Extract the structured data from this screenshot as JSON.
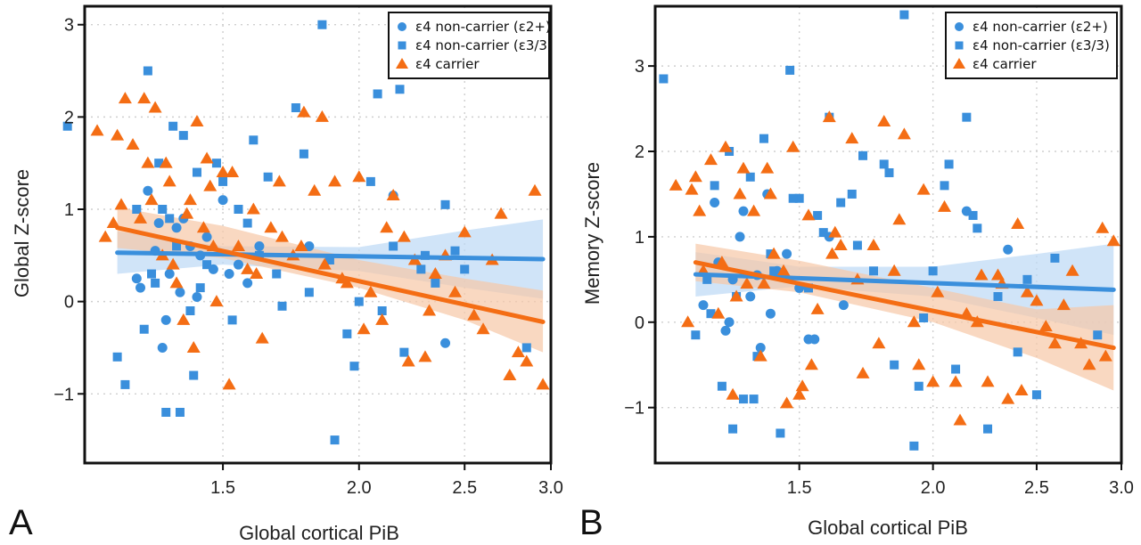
{
  "colors": {
    "noncarrier": "#3a8fdc",
    "carrier": "#f46d14",
    "noncarrier_band": "#bcd9f5",
    "carrier_band": "#f6c7a7"
  },
  "chart_data": [
    {
      "type": "scatter",
      "panel_letter": "A",
      "xlabel": "Global cortical PiB",
      "ylabel": "Global Z-score",
      "x_scale": "log",
      "xlim": [
        1.12,
        3.0
      ],
      "ylim": [
        -1.75,
        3.2
      ],
      "xticks": [
        1.5,
        2.0,
        2.5,
        3.0
      ],
      "xtick_labels": [
        "1.5",
        "2.0",
        "2.5",
        "3.0"
      ],
      "yticks": [
        -1,
        0,
        1,
        2,
        3
      ],
      "ytick_labels": [
        "−1",
        "0",
        "1",
        "2",
        "3"
      ],
      "grid": true,
      "legend_position": "top-right",
      "series": [
        {
          "name": "ε4 non-carrier (ε2+)",
          "marker": "circle",
          "color": "#3a8fdc",
          "x": [
            1.25,
            1.28,
            1.3,
            1.32,
            1.34,
            1.36,
            1.37,
            1.4,
            1.42,
            1.45,
            1.47,
            1.5,
            1.55,
            1.58,
            1.26,
            1.33,
            1.38,
            1.43,
            1.52,
            1.62,
            1.8,
            2.15,
            2.4,
            1.31
          ],
          "y": [
            0.25,
            1.2,
            0.55,
            -0.5,
            0.3,
            0.8,
            0.1,
            0.6,
            0.05,
            0.7,
            0.35,
            1.1,
            0.4,
            0.2,
            0.15,
            -0.2,
            0.9,
            0.5,
            0.3,
            0.6,
            0.6,
            1.15,
            -0.45,
            0.85
          ]
        },
        {
          "name": "ε4 non-carrier (ε3/3)",
          "marker": "square",
          "color": "#3a8fdc",
          "x": [
            1.08,
            1.2,
            1.22,
            1.25,
            1.28,
            1.3,
            1.31,
            1.33,
            1.34,
            1.35,
            1.36,
            1.38,
            1.4,
            1.42,
            1.45,
            1.48,
            1.5,
            1.53,
            1.55,
            1.6,
            1.62,
            1.65,
            1.7,
            1.75,
            1.8,
            1.85,
            1.9,
            1.95,
            2.0,
            2.05,
            2.1,
            2.15,
            2.2,
            2.3,
            2.35,
            2.45,
            2.5,
            1.27,
            1.32,
            1.37,
            1.43,
            1.58,
            1.68,
            1.78,
            1.88,
            1.98,
            2.08,
            2.18,
            2.28,
            2.4,
            2.85,
            1.29,
            1.41
          ],
          "y": [
            1.9,
            -0.6,
            -0.9,
            1.0,
            2.5,
            0.2,
            1.5,
            -1.2,
            0.9,
            1.9,
            0.6,
            1.8,
            -0.1,
            1.4,
            0.4,
            1.5,
            1.3,
            -0.2,
            1.0,
            1.75,
            0.5,
            1.35,
            -0.05,
            2.1,
            0.1,
            3.0,
            -1.5,
            -0.35,
            0.0,
            1.3,
            -0.1,
            0.6,
            -0.55,
            0.5,
            0.2,
            0.55,
            0.35,
            -0.3,
            1.0,
            -1.2,
            0.15,
            0.85,
            0.3,
            1.6,
            0.45,
            -0.7,
            2.25,
            2.3,
            0.35,
            1.05,
            -0.5,
            0.3,
            -0.8
          ]
        },
        {
          "name": "ε4 carrier",
          "marker": "triangle",
          "color": "#f46d14",
          "x": [
            1.15,
            1.17,
            1.2,
            1.22,
            1.24,
            1.26,
            1.28,
            1.3,
            1.32,
            1.34,
            1.36,
            1.38,
            1.4,
            1.42,
            1.44,
            1.46,
            1.48,
            1.5,
            1.52,
            1.55,
            1.58,
            1.6,
            1.63,
            1.66,
            1.7,
            1.74,
            1.78,
            1.82,
            1.86,
            1.9,
            1.95,
            2.0,
            2.05,
            2.1,
            2.15,
            2.2,
            2.25,
            2.3,
            2.35,
            2.4,
            2.5,
            2.6,
            2.7,
            2.8,
            2.9,
            2.95,
            1.19,
            1.27,
            1.33,
            1.39,
            1.45,
            1.53,
            1.61,
            1.69,
            1.77,
            1.85,
            1.93,
            2.02,
            2.12,
            2.22,
            2.32,
            2.45,
            2.55,
            2.65,
            2.75,
            2.85,
            1.21,
            1.29,
            1.35,
            1.41,
            1.47
          ],
          "y": [
            1.85,
            0.7,
            1.8,
            2.2,
            1.7,
            0.9,
            1.5,
            2.1,
            0.5,
            1.3,
            0.2,
            -0.2,
            1.1,
            1.95,
            0.8,
            1.25,
            0.0,
            1.4,
            -0.9,
            0.6,
            0.35,
            1.0,
            -0.4,
            0.8,
            0.7,
            0.5,
            2.05,
            1.2,
            0.4,
            1.3,
            0.2,
            1.35,
            0.1,
            -0.2,
            1.15,
            0.7,
            0.45,
            -0.6,
            0.3,
            0.5,
            0.75,
            -0.3,
            0.95,
            -0.55,
            1.2,
            -0.9,
            0.85,
            2.2,
            1.5,
            0.95,
            1.55,
            1.4,
            0.3,
            1.3,
            0.6,
            2.0,
            0.25,
            -0.3,
            0.8,
            -0.65,
            -0.1,
            0.1,
            -0.15,
            0.45,
            -0.8,
            -0.65,
            1.05,
            1.1,
            0.4,
            -0.5,
            0.6
          ]
        }
      ],
      "fits": [
        {
          "series": "ε4 non-carrier",
          "color": "#3a8fdc",
          "band_color": "#bcd9f5",
          "x": [
            1.2,
            2.95
          ],
          "y": [
            0.53,
            0.46
          ],
          "band_x": [
            1.2,
            1.5,
            2.0,
            2.5,
            2.95
          ],
          "band_lower": [
            0.3,
            0.4,
            0.33,
            0.15,
            0.03
          ],
          "band_upper": [
            0.76,
            0.6,
            0.59,
            0.77,
            0.89
          ]
        },
        {
          "series": "ε4 carrier",
          "color": "#f46d14",
          "band_color": "#f6c7a7",
          "x": [
            1.2,
            2.95
          ],
          "y": [
            0.8,
            -0.22
          ],
          "band_x": [
            1.2,
            1.5,
            2.0,
            2.5,
            2.95
          ],
          "band_lower": [
            0.58,
            0.47,
            0.15,
            -0.2,
            -0.55
          ],
          "band_upper": [
            1.02,
            0.82,
            0.45,
            0.25,
            0.12
          ]
        }
      ]
    },
    {
      "type": "scatter",
      "panel_letter": "B",
      "xlabel": "Global cortical PiB",
      "ylabel": "Memory Z-score",
      "x_scale": "log",
      "xlim": [
        1.1,
        3.0
      ],
      "ylim": [
        -1.65,
        3.7
      ],
      "xticks": [
        1.5,
        2.0,
        2.5,
        3.0
      ],
      "xtick_labels": [
        "1.5",
        "2.0",
        "2.5",
        "3.0"
      ],
      "yticks": [
        -1,
        0,
        1,
        2,
        3
      ],
      "ytick_labels": [
        "−1",
        "0",
        "1",
        "2",
        "3"
      ],
      "grid": true,
      "legend_position": "top-right",
      "series": [
        {
          "name": "ε4 non-carrier (ε2+)",
          "marker": "circle",
          "color": "#3a8fdc",
          "x": [
            1.22,
            1.25,
            1.28,
            1.3,
            1.32,
            1.35,
            1.38,
            1.4,
            1.43,
            1.46,
            1.5,
            1.55,
            1.6,
            1.65,
            1.26,
            1.33,
            1.41,
            1.53,
            2.35,
            2.15,
            1.29,
            1.37
          ],
          "y": [
            0.2,
            1.4,
            -0.1,
            0.5,
            1.0,
            0.3,
            -0.3,
            1.5,
            0.6,
            0.8,
            0.4,
            -0.2,
            1.0,
            0.2,
            0.7,
            1.3,
            0.1,
            -0.2,
            0.85,
            1.3,
            0.0,
            0.55
          ]
        },
        {
          "name": "ε4 non-carrier (ε3/3)",
          "marker": "square",
          "color": "#3a8fdc",
          "x": [
            1.12,
            1.2,
            1.23,
            1.25,
            1.27,
            1.29,
            1.31,
            1.33,
            1.35,
            1.37,
            1.39,
            1.41,
            1.44,
            1.47,
            1.5,
            1.53,
            1.56,
            1.6,
            1.64,
            1.68,
            1.72,
            1.76,
            1.8,
            1.84,
            1.88,
            1.92,
            1.96,
            2.0,
            2.05,
            2.1,
            2.15,
            2.2,
            2.25,
            2.3,
            2.4,
            2.5,
            2.6,
            2.85,
            1.24,
            1.3,
            1.36,
            1.42,
            1.48,
            1.58,
            1.7,
            1.82,
            1.94,
            2.07,
            2.18,
            2.45
          ],
          "y": [
            2.85,
            -0.15,
            0.5,
            1.6,
            -0.75,
            2.0,
            0.3,
            -0.9,
            1.7,
            -0.4,
            2.15,
            0.8,
            -1.3,
            2.95,
            1.45,
            0.4,
            1.25,
            2.4,
            1.4,
            1.5,
            1.95,
            0.6,
            1.85,
            -0.5,
            3.6,
            -1.45,
            0.05,
            0.6,
            1.6,
            -0.55,
            2.4,
            1.1,
            -1.25,
            0.3,
            -0.35,
            -0.85,
            0.75,
            -0.15,
            0.1,
            -1.25,
            -0.9,
            0.6,
            1.45,
            1.05,
            0.9,
            1.75,
            -0.75,
            1.85,
            1.25,
            0.5
          ]
        },
        {
          "name": "ε4 carrier",
          "marker": "triangle",
          "color": "#f46d14",
          "x": [
            1.15,
            1.18,
            1.2,
            1.22,
            1.24,
            1.26,
            1.28,
            1.3,
            1.32,
            1.34,
            1.36,
            1.38,
            1.4,
            1.42,
            1.45,
            1.48,
            1.5,
            1.53,
            1.56,
            1.6,
            1.64,
            1.68,
            1.72,
            1.76,
            1.8,
            1.84,
            1.88,
            1.92,
            1.96,
            2.0,
            2.05,
            2.1,
            2.15,
            2.2,
            2.25,
            2.3,
            2.35,
            2.4,
            2.45,
            2.5,
            2.6,
            2.7,
            2.8,
            2.9,
            2.95,
            1.19,
            1.27,
            1.33,
            1.39,
            1.46,
            1.54,
            1.62,
            1.7,
            1.78,
            1.86,
            1.94,
            2.02,
            2.12,
            2.22,
            2.32,
            2.42,
            2.55,
            2.65,
            2.75,
            2.88,
            1.21,
            1.31,
            1.41,
            1.51,
            1.61
          ],
          "y": [
            1.6,
            0.0,
            1.7,
            0.6,
            1.9,
            0.1,
            2.05,
            -0.85,
            1.5,
            0.45,
            1.3,
            -0.4,
            1.8,
            0.8,
            0.6,
            2.05,
            -0.85,
            1.25,
            0.15,
            2.4,
            0.9,
            2.15,
            -0.6,
            0.9,
            2.35,
            0.6,
            2.2,
            0.0,
            1.55,
            -0.7,
            1.35,
            -0.7,
            0.1,
            0.0,
            -0.7,
            0.55,
            -0.9,
            1.15,
            0.35,
            0.25,
            -0.25,
            0.6,
            -0.5,
            -0.4,
            0.95,
            1.55,
            0.7,
            1.8,
            0.45,
            -0.95,
            -0.5,
            1.05,
            0.5,
            -0.25,
            1.2,
            -0.5,
            0.35,
            -1.15,
            0.55,
            0.45,
            -0.8,
            -0.05,
            0.2,
            -0.25,
            1.1,
            1.3,
            0.3,
            1.5,
            -0.75,
            0.8
          ]
        }
      ],
      "fits": [
        {
          "series": "ε4 non-carrier",
          "color": "#3a8fdc",
          "band_color": "#bcd9f5",
          "x": [
            1.2,
            2.95
          ],
          "y": [
            0.56,
            0.38
          ],
          "band_x": [
            1.2,
            1.5,
            2.0,
            2.5,
            2.95
          ],
          "band_lower": [
            0.3,
            0.42,
            0.3,
            0.05,
            -0.15
          ],
          "band_upper": [
            0.82,
            0.65,
            0.65,
            0.8,
            0.92
          ]
        },
        {
          "series": "ε4 carrier",
          "color": "#f46d14",
          "band_color": "#f6c7a7",
          "x": [
            1.2,
            2.95
          ],
          "y": [
            0.7,
            -0.3
          ],
          "band_x": [
            1.2,
            1.5,
            2.0,
            2.5,
            2.95
          ],
          "band_lower": [
            0.48,
            0.35,
            0.0,
            -0.42,
            -0.8
          ],
          "band_upper": [
            0.92,
            0.72,
            0.4,
            0.15,
            0.2
          ]
        }
      ]
    }
  ]
}
